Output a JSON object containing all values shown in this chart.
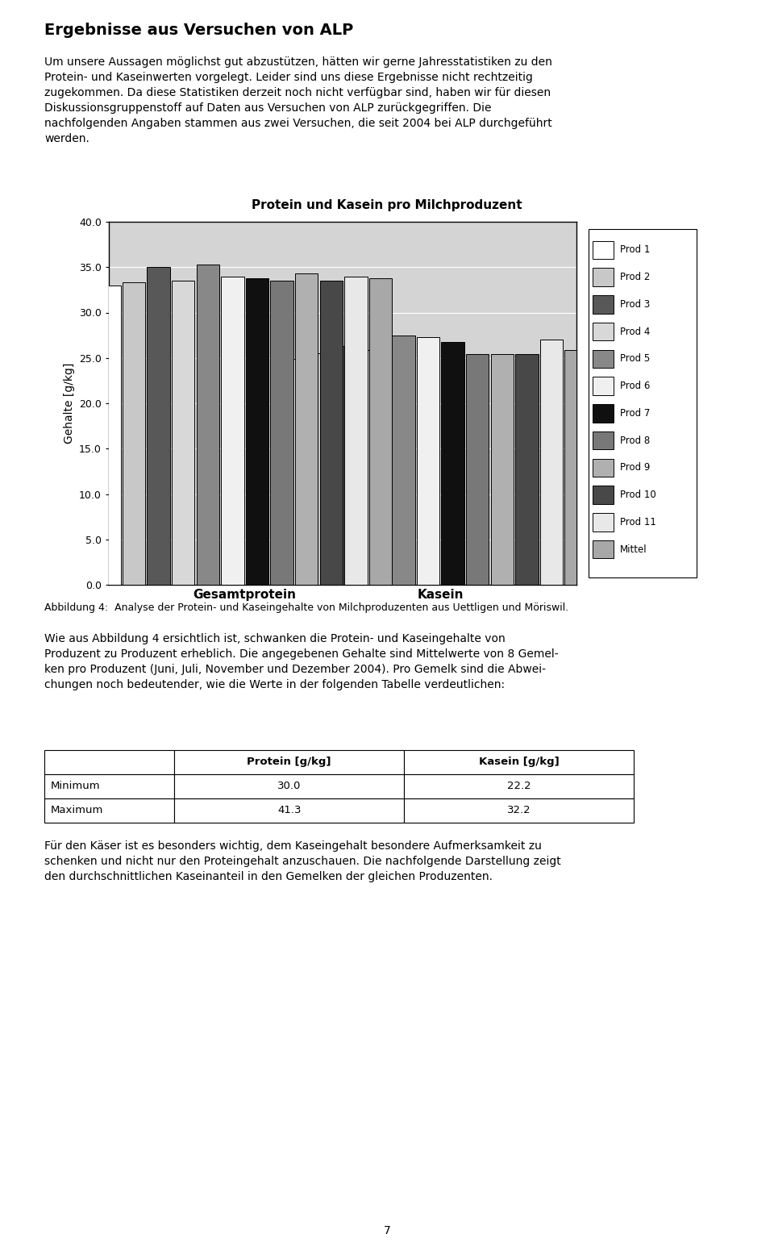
{
  "title": "Protein und Kasein pro Milchproduzent",
  "ylabel": "Gehalte [g/kg]",
  "xlabel_groups": [
    "Gesamtprotein",
    "Kasein"
  ],
  "ylim": [
    0.0,
    40.0
  ],
  "yticks": [
    0.0,
    5.0,
    10.0,
    15.0,
    20.0,
    25.0,
    30.0,
    35.0,
    40.0
  ],
  "legend_labels": [
    "Prod 1",
    "Prod 2",
    "Prod 3",
    "Prod 4",
    "Prod 5",
    "Prod 6",
    "Prod 7",
    "Prod 8",
    "Prod 9",
    "Prod 10",
    "Prod 11",
    "Mittel"
  ],
  "bar_colors": [
    "#ffffff",
    "#c8c8c8",
    "#585858",
    "#d8d8d8",
    "#888888",
    "#f0f0f0",
    "#101010",
    "#787878",
    "#b0b0b0",
    "#484848",
    "#e8e8e8",
    "#a8a8a8"
  ],
  "gesamtprotein": [
    33.0,
    33.3,
    35.0,
    33.5,
    35.3,
    34.0,
    33.8,
    33.5,
    34.3,
    33.5,
    34.0,
    33.8
  ],
  "kasein": [
    24.9,
    25.5,
    26.3,
    25.9,
    27.5,
    27.3,
    26.8,
    25.4,
    25.4,
    25.4,
    27.0,
    25.9
  ],
  "heading": "Ergebnisse aus Versuchen von ALP",
  "body_text1": "Um unsere Aussagen möglichst gut abzustützen, hätten wir gerne Jahresstatistiken zu den Protein- und Kaseinwerten vorgelegt. Leider sind uns diese Ergebnisse nicht rechtzeitig zugekommen. Da diese Statistiken derzeit noch nicht verfügbar sind, haben wir für diesen Diskussionsgruppenstoff auf Daten aus Versuchen von ALP zurückgegriffen. Die nachfolgenden Angaben stammen aus zwei Versuchen, die seit 2004 bei ALP durchgeführt werden.",
  "caption": "Abbildung 4:  Analyse der Protein- und Kaseingehalte von Milchproduzenten aus Uettligen und Möriswil.",
  "body_text2": "Wie aus Abbildung 4 ersichtlich ist, schwanken die Protein- und Kaseingehalte von Produzent zu Produzent erheblich. Die angegebenen Gehalte sind Mittelwerte von 8 Gemel-ken pro Produzent (Juni, Juli, November und Dezember 2004). Pro Gemelk sind die Abwei-chungen noch bedeutender, wie die Werte in der folgenden Tabelle verdeutlichen:",
  "table_headers": [
    "",
    "Protein [g/kg]",
    "Kasein [g/kg]"
  ],
  "table_rows": [
    [
      "Minimum",
      "30.0",
      "22.2"
    ],
    [
      "Maximum",
      "41.3",
      "32.2"
    ]
  ],
  "footer_text": "Für den Käser ist es besonders wichtig, dem Kaseingehalt besondere Aufmerksamkeit zu schenken und nicht nur den Proteingehalt anzuschauen. Die nachfolgende Darstellung zeigt den durchschnittlichen Kaseinanteil in den Gemelken der gleichen Produzenten.",
  "page_number": "7",
  "chart_bg": "#d4d4d4",
  "grid_color": "#ffffff"
}
